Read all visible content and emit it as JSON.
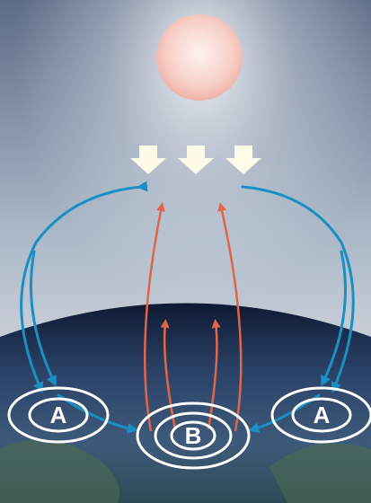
{
  "nodes": [
    {
      "label": "A"
    },
    {
      "label": "B"
    },
    {
      "label": "A"
    }
  ]
}
